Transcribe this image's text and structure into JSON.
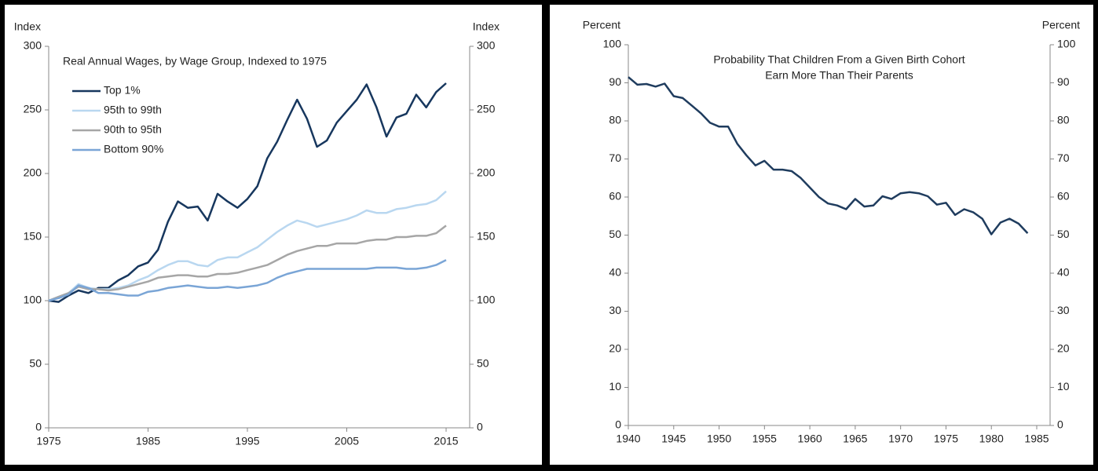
{
  "chart_data": [
    {
      "type": "line",
      "title": [
        "Real Annual Wages, by Wage Group, Indexed to 1975"
      ],
      "y_axis_label": "Index",
      "y2_axis_label": "Index",
      "x": [
        1975,
        1976,
        1977,
        1978,
        1979,
        1980,
        1981,
        1982,
        1983,
        1984,
        1985,
        1986,
        1987,
        1988,
        1989,
        1990,
        1991,
        1992,
        1993,
        1994,
        1995,
        1996,
        1997,
        1998,
        1999,
        2000,
        2001,
        2002,
        2003,
        2004,
        2005,
        2006,
        2007,
        2008,
        2009,
        2010,
        2011,
        2012,
        2013,
        2014,
        2015
      ],
      "xlim": [
        1975,
        2015
      ],
      "xticks": [
        1975,
        1985,
        1995,
        2005,
        2015
      ],
      "ylim": [
        0,
        300
      ],
      "yticks": [
        0,
        50,
        100,
        150,
        200,
        250,
        300
      ],
      "y2lim": [
        0,
        300
      ],
      "y2ticks": [
        0,
        50,
        100,
        150,
        200,
        250,
        300
      ],
      "legend": "upper left",
      "series": [
        {
          "name": "Top 1%",
          "color": "#17375e",
          "values": [
            100,
            99,
            104,
            108,
            106,
            110,
            110,
            116,
            120,
            127,
            130,
            140,
            162,
            178,
            173,
            174,
            163,
            184,
            178,
            173,
            180,
            190,
            212,
            225,
            242,
            258,
            243,
            221,
            226,
            240,
            249,
            258,
            270,
            252,
            229,
            244,
            247,
            262,
            252,
            264,
            271
          ]
        },
        {
          "name": "95th to 99th",
          "color": "#b9d7f0",
          "values": [
            100,
            103,
            106,
            113,
            110,
            109,
            109,
            110,
            112,
            116,
            119,
            124,
            128,
            131,
            131,
            128,
            127,
            132,
            134,
            134,
            138,
            142,
            148,
            154,
            159,
            163,
            161,
            158,
            160,
            162,
            164,
            167,
            171,
            169,
            169,
            172,
            173,
            175,
            176,
            179,
            186
          ]
        },
        {
          "name": "90th to 95th",
          "color": "#a6a6a6",
          "values": [
            100,
            103,
            106,
            111,
            109,
            109,
            108,
            109,
            111,
            113,
            115,
            118,
            119,
            120,
            120,
            119,
            119,
            121,
            121,
            122,
            124,
            126,
            128,
            132,
            136,
            139,
            141,
            143,
            143,
            145,
            145,
            145,
            147,
            148,
            148,
            150,
            150,
            151,
            151,
            153,
            159
          ]
        },
        {
          "name": "Bottom 90%",
          "color": "#7aa5d6",
          "values": [
            100,
            102,
            105,
            112,
            110,
            106,
            106,
            105,
            104,
            104,
            107,
            108,
            110,
            111,
            112,
            111,
            110,
            110,
            111,
            110,
            111,
            112,
            114,
            118,
            121,
            123,
            125,
            125,
            125,
            125,
            125,
            125,
            125,
            126,
            126,
            126,
            125,
            125,
            126,
            128,
            132
          ]
        }
      ]
    },
    {
      "type": "line",
      "title": [
        "Probability That Children From a Given Birth Cohort",
        "Earn More Than Their Parents"
      ],
      "y_axis_label": "Percent",
      "y2_axis_label": "Percent",
      "x": [
        1940,
        1941,
        1942,
        1943,
        1944,
        1945,
        1946,
        1947,
        1948,
        1949,
        1950,
        1951,
        1952,
        1953,
        1954,
        1955,
        1956,
        1957,
        1958,
        1959,
        1960,
        1961,
        1962,
        1963,
        1964,
        1965,
        1966,
        1967,
        1968,
        1969,
        1970,
        1971,
        1972,
        1973,
        1974,
        1975,
        1976,
        1977,
        1978,
        1979,
        1980,
        1981,
        1982,
        1983,
        1984
      ],
      "xlim": [
        1940,
        1985
      ],
      "xticks": [
        1940,
        1945,
        1950,
        1955,
        1960,
        1965,
        1970,
        1975,
        1980,
        1985
      ],
      "ylim": [
        0,
        100
      ],
      "yticks": [
        0,
        10,
        20,
        30,
        40,
        50,
        60,
        70,
        80,
        90,
        100
      ],
      "y2lim": [
        0,
        100
      ],
      "y2ticks": [
        0,
        10,
        20,
        30,
        40,
        50,
        60,
        70,
        80,
        90,
        100
      ],
      "series": [
        {
          "color": "#1f3c5e",
          "values": [
            91.5,
            89.5,
            89.7,
            89.0,
            89.8,
            86.5,
            86,
            84,
            82,
            79.5,
            78.5,
            78.5,
            74,
            71,
            68.3,
            69.5,
            67.2,
            67.2,
            66.8,
            65,
            62.5,
            60,
            58.3,
            57.8,
            56.8,
            59.5,
            57.5,
            57.8,
            60.2,
            59.5,
            61,
            61.3,
            61,
            60.2,
            58,
            58.5,
            55.3,
            56.8,
            56,
            54.3,
            50.2,
            53.3,
            54.3,
            53,
            50.5
          ]
        }
      ]
    }
  ]
}
